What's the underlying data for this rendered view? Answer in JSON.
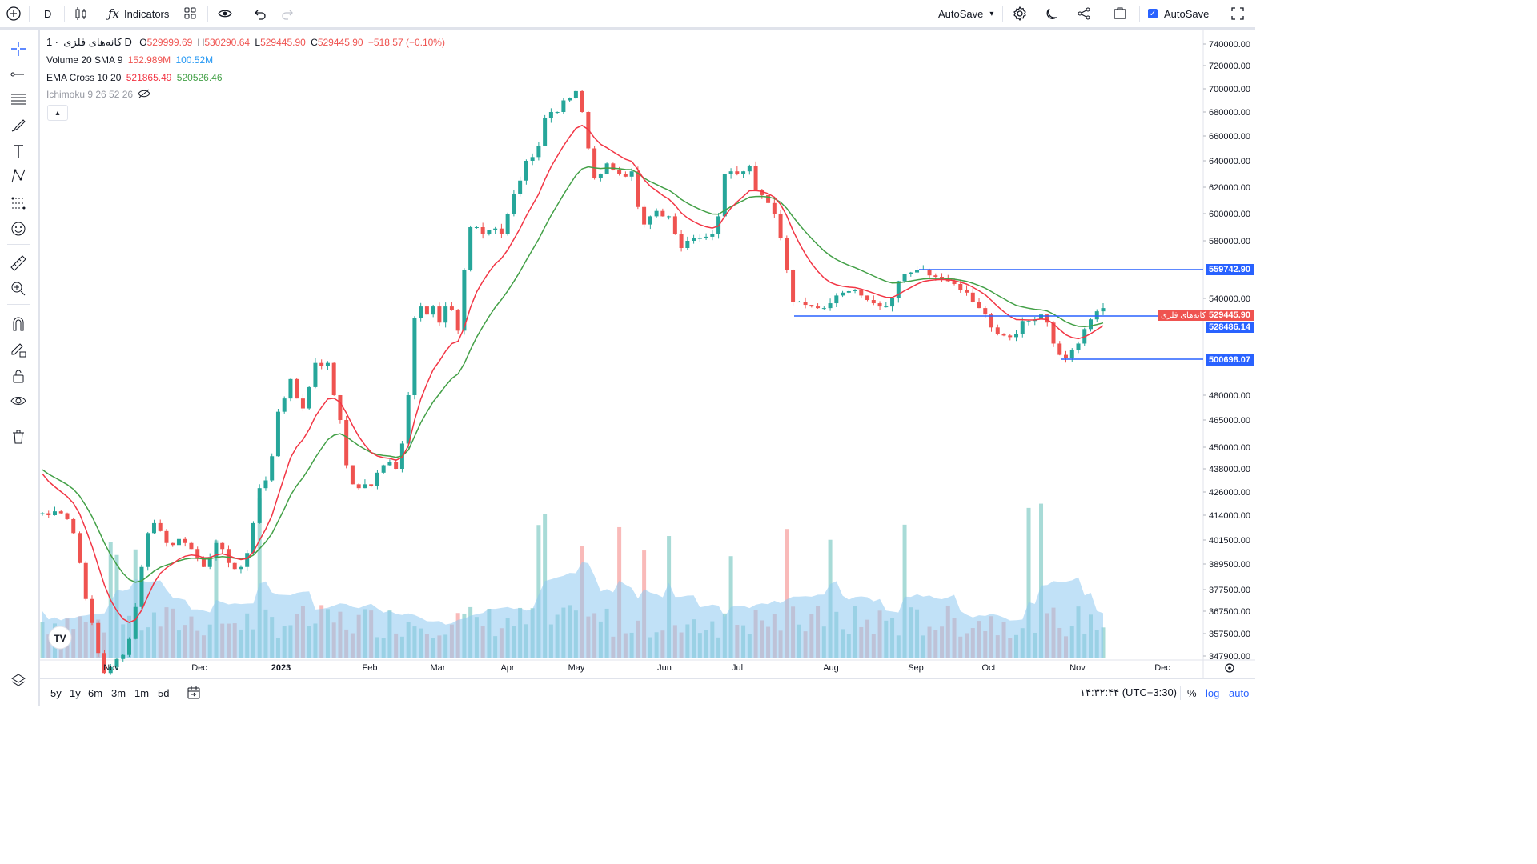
{
  "toolbar": {
    "interval": "D",
    "indicators_label": "Indicators",
    "autosave_dropdown": "AutoSave",
    "autosave_checkbox": "AutoSave",
    "icons": [
      "plus-circle-icon",
      "candles-icon",
      "function-icon",
      "templates-icon",
      "eye-icon",
      "undo-icon",
      "redo-icon",
      "chevron-down-icon",
      "gear-icon",
      "moon-icon",
      "share-icon",
      "snapshot-icon",
      "fullscreen-icon"
    ]
  },
  "left_toolbar": {
    "icons": [
      "crosshair-icon",
      "trend-line-icon",
      "horizontal-lines-icon",
      "brush-icon",
      "text-icon",
      "pattern-icon",
      "forecast-icon",
      "emoji-icon",
      "ruler-icon",
      "zoom-in-icon",
      "magnet-icon",
      "lock-drawing-icon",
      "lock-icon",
      "eye-visibility-icon",
      "trash-icon",
      "layers-icon"
    ]
  },
  "legend": {
    "symbol": "کانه‌های فلزی",
    "dot": "·",
    "interval": "1D",
    "open_label": "O",
    "open": "529999.69",
    "high_label": "H",
    "high": "530290.64",
    "low_label": "L",
    "low": "529445.90",
    "close_label": "C",
    "close": "529445.90",
    "change": "−518.57 (−0.10%)",
    "volume_title": "Volume 20 SMA 9",
    "volume_value": "152.989M",
    "volume_sma": "100.52M",
    "ema_title": "EMA Cross 10 20",
    "ema_fast": "521865.49",
    "ema_slow": "520526.46",
    "ichimoku_title": "Ichimoku 9 26 52 26"
  },
  "price_axis": {
    "ticks": [
      "740000.00",
      "720000.00",
      "700000.00",
      "680000.00",
      "660000.00",
      "640000.00",
      "620000.00",
      "600000.00",
      "580000.00",
      "540000.00",
      "480000.00",
      "465000.00",
      "450000.00",
      "438000.00",
      "426000.00",
      "414000.00",
      "401500.00",
      "389500.00",
      "377500.00",
      "367500.00",
      "357500.00",
      "347900.00"
    ],
    "labels": {
      "top_line": "559742.90",
      "last_name": "کانه‌های فلزی",
      "last_price": "529445.90",
      "mid_line": "528486.14",
      "bottom_line": "500698.07"
    }
  },
  "time_axis": {
    "labels": [
      "Nov",
      "Dec",
      "2023",
      "Feb",
      "Mar",
      "Apr",
      "May",
      "Jun",
      "Jul",
      "Aug",
      "Sep",
      "Oct",
      "Nov",
      "Dec"
    ]
  },
  "bottom_bar": {
    "ranges": [
      "5y",
      "1y",
      "6m",
      "3m",
      "1m",
      "5d"
    ],
    "time": "۱۴:۳۲:۴۴ (UTC+3:30)",
    "percent": "%",
    "log": "log",
    "auto": "auto"
  },
  "colors": {
    "up": "#26a69a",
    "down": "#ef5350",
    "ema_fast": "#f23645",
    "ema_slow": "#43a047",
    "sma_volume_fill": "#8ec9f0",
    "hline": "#2962ff",
    "accent": "#2962ff"
  },
  "chart_data": {
    "type": "candlestick",
    "x_range": [
      "Oct 2022",
      "Dec 2023"
    ],
    "hlines": [
      559742.9,
      528486.14,
      500698.07
    ],
    "last_price": 529445.9,
    "closes": [
      415,
      414,
      416,
      415,
      412,
      405,
      390,
      372,
      360,
      345,
      335,
      338,
      342,
      344,
      352,
      368,
      388,
      405,
      410,
      406,
      400,
      399,
      402,
      400,
      397,
      392,
      388,
      393,
      400,
      397,
      390,
      387,
      388,
      395,
      410,
      428,
      432,
      445,
      470,
      478,
      490,
      478,
      472,
      485,
      500,
      498,
      500,
      480,
      465,
      440,
      430,
      428,
      430,
      429,
      436,
      440,
      442,
      438,
      452,
      480,
      528,
      535,
      530,
      535,
      525,
      535,
      533,
      520,
      560,
      590,
      590,
      585,
      588,
      589,
      585,
      600,
      615,
      625,
      640,
      643,
      652,
      675,
      680,
      680,
      690,
      692,
      698,
      680,
      650,
      627,
      630,
      638,
      633,
      630,
      628,
      632,
      605,
      592,
      598,
      602,
      598,
      598,
      585,
      575,
      580,
      582,
      582,
      583,
      585,
      598,
      630,
      632,
      630,
      632,
      636,
      618,
      614,
      608,
      600,
      582,
      560,
      538,
      538,
      536,
      535,
      534,
      534,
      537,
      542,
      544,
      545,
      546,
      542,
      539,
      537,
      535,
      535,
      540,
      552,
      557,
      558,
      560,
      560,
      556,
      555,
      554,
      552,
      550,
      546,
      544,
      538,
      534,
      530,
      522,
      518,
      517,
      516,
      518,
      526,
      526,
      527,
      530,
      525,
      512,
      505,
      503,
      508,
      512,
      521,
      527,
      532,
      534
    ]
  }
}
